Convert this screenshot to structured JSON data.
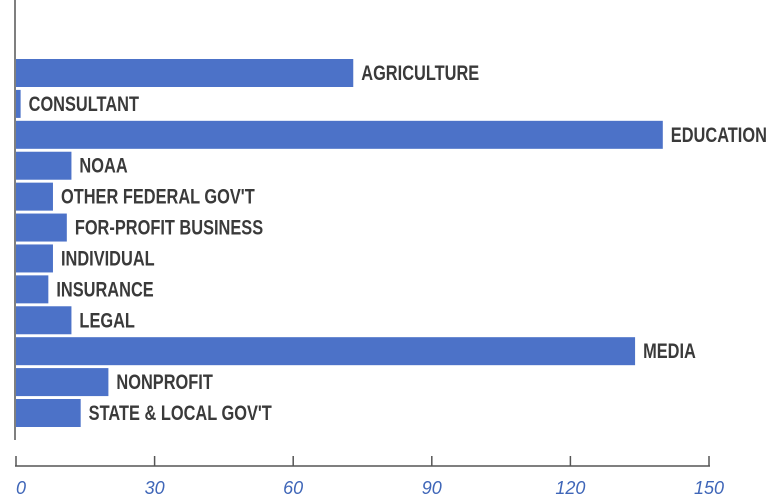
{
  "chart_data": {
    "type": "bar",
    "orientation": "horizontal",
    "categories": [
      "AGRICULTURE",
      "CONSULTANT",
      "EDUCATION",
      "NOAA",
      "OTHER FEDERAL GOV'T",
      "FOR-PROFIT BUSINESS",
      "INDIVIDUAL",
      "INSURANCE",
      "LEGAL",
      "MEDIA",
      "NONPROFIT",
      "STATE & LOCAL GOV'T"
    ],
    "values": [
      73,
      1,
      140,
      12,
      8,
      11,
      8,
      7,
      12,
      134,
      20,
      14
    ],
    "xlim": [
      0,
      150
    ],
    "xticks": [
      0,
      30,
      60,
      90,
      120,
      150
    ],
    "xtick_labels": [
      "0",
      "30",
      "60",
      "90",
      "120",
      "150"
    ],
    "title": "",
    "xlabel": "",
    "ylabel": "",
    "grid": false,
    "bar_color": "#4c72c8",
    "tick_label_color": "#3f66b8",
    "label_color": "#3a3a3a"
  }
}
